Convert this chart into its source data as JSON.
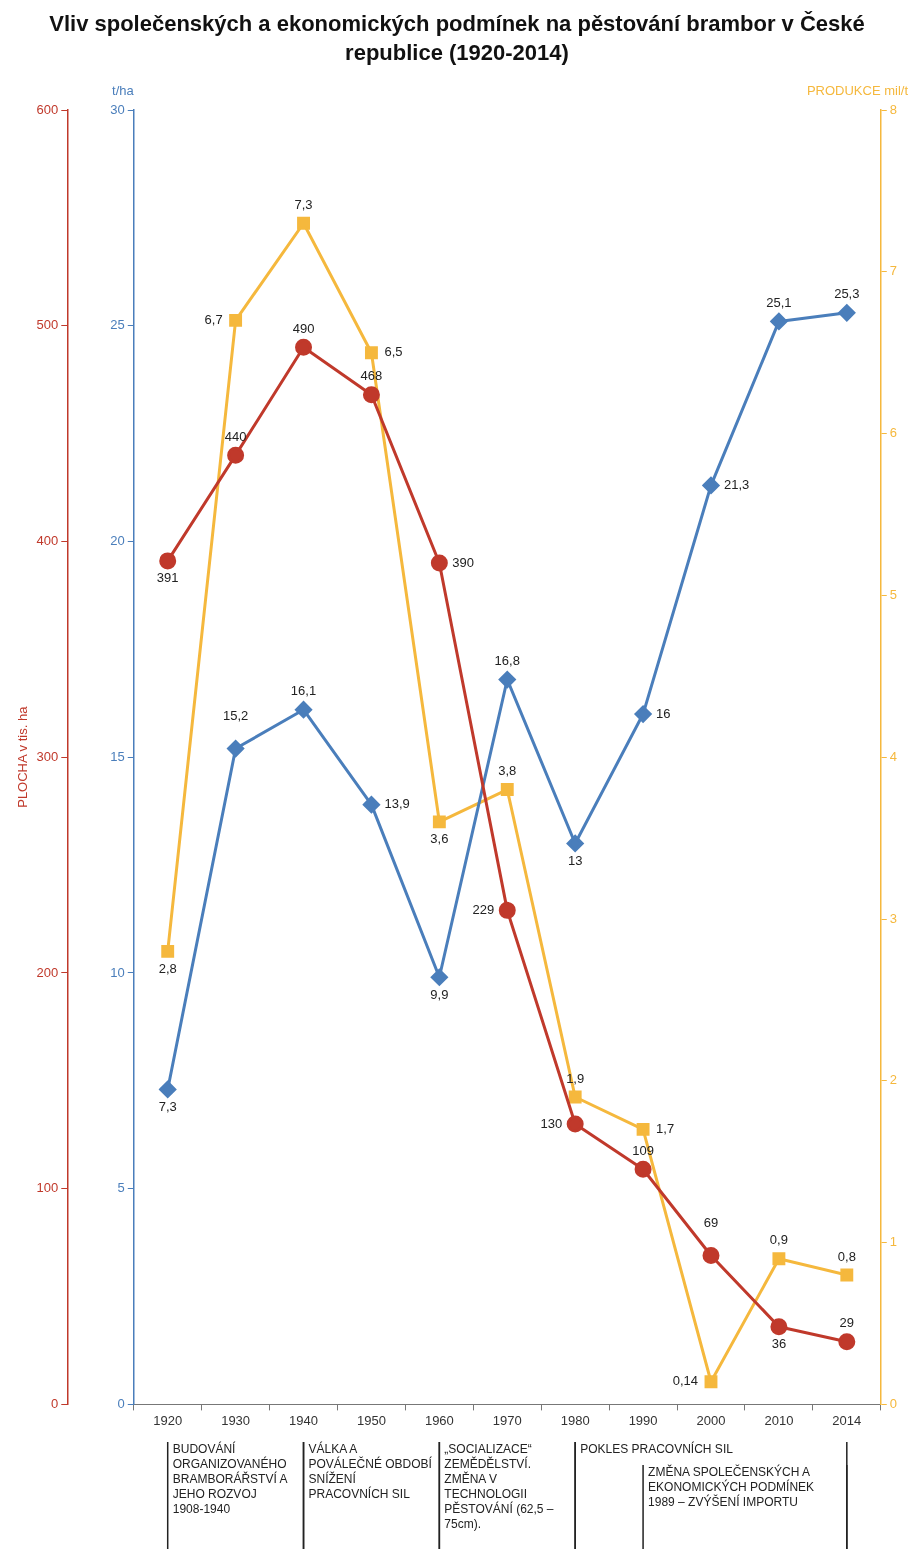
{
  "chart_data": {
    "type": "line",
    "title": "Vliv společenských a ekonomických podmínek na pěstování brambor v České republice (1920-2014)",
    "categories": [
      "1920",
      "1930",
      "1940",
      "1950",
      "1960",
      "1970",
      "1980",
      "1990",
      "2000",
      "2010",
      "2014"
    ],
    "ylabel": "PLOCHA v tis. ha",
    "y2label": "t/ha",
    "y3label": "PRODUKCE mil/t",
    "ylim": [
      0,
      600
    ],
    "yticks": [
      0,
      100,
      200,
      300,
      400,
      500,
      600
    ],
    "y2lim": [
      0,
      30
    ],
    "y2ticks": [
      0,
      5,
      10,
      15,
      20,
      25,
      30
    ],
    "y3lim": [
      0,
      8
    ],
    "y3ticks": [
      0,
      1,
      2,
      3,
      4,
      5,
      6,
      7,
      8
    ],
    "series": [
      {
        "color": "#c0392b",
        "marker": "circle",
        "values": [
          391,
          440,
          490,
          468,
          390,
          229,
          130,
          109,
          69,
          36,
          29
        ],
        "value_labels": [
          "391",
          "440",
          "490",
          "468",
          "390",
          "229",
          "130",
          "109",
          "69",
          "36",
          "29"
        ]
      },
      {
        "color": "#4a7ebb",
        "marker": "diamond",
        "axis": "y2",
        "values": [
          7.3,
          15.2,
          16.1,
          13.9,
          9.9,
          16.8,
          13,
          16,
          21.3,
          25.1,
          25.3
        ],
        "value_labels": [
          "7,3",
          "15,2",
          "16,1",
          "13,9",
          "9,9",
          "16,8",
          "13",
          "16",
          "21,3",
          "25,1",
          "25,3"
        ]
      },
      {
        "color": "#f5b83d",
        "marker": "square",
        "axis": "y3",
        "values": [
          2.8,
          6.7,
          7.3,
          6.5,
          3.6,
          3.8,
          1.9,
          1.7,
          0.14,
          0.9,
          0.8
        ],
        "value_labels": [
          "2,8",
          "6,7",
          "7,3",
          "6,5",
          "3,6",
          "3,8",
          "1,9",
          "1,7",
          "0,14",
          "0,9",
          "0,8"
        ]
      }
    ],
    "grid": false,
    "legend": false,
    "annotations": [
      "BUDOVÁNÍ ORGANIZOVANÉHO BRAMBORÁŘSTVÍ A JEHO ROZVOJ 1908-1940",
      "VÁLKA A POVÁLEČNÉ OBDOBÍ SNÍŽENÍ PRACOVNÍCH SIL",
      "„SOCIALIZACE“ ZEMĚDĚLSTVÍ. ZMĚNA V TECHNOLOGII PĚSTOVÁNÍ (62,5 – 75cm).",
      "POKLES PRACOVNÍCH SIL",
      "ZMĚNA SPOLEČENSKÝCH A EKONOMICKÝCH PODMÍNEK 1989 – ZVÝŠENÍ IMPORTU"
    ]
  }
}
